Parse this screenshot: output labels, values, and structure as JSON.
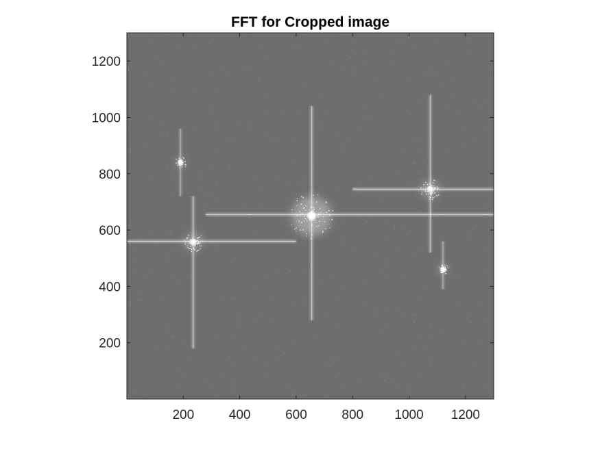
{
  "chart_data": {
    "type": "heatmap",
    "title": "FFT for Cropped image",
    "xlabel": "",
    "ylabel": "",
    "xlim": [
      0,
      1300
    ],
    "ylim": [
      0,
      1300
    ],
    "x_ticks": [
      200,
      400,
      600,
      800,
      1000,
      1200
    ],
    "y_ticks": [
      200,
      400,
      600,
      800,
      1000,
      1200
    ],
    "colormap": "gray",
    "y_direction": "normal",
    "grid": false,
    "background_level": "#6e6e6e",
    "peaks": [
      {
        "x": 655,
        "y": 650,
        "intensity": 1.0,
        "spread": 70
      },
      {
        "x": 235,
        "y": 558,
        "intensity": 0.9,
        "spread": 30
      },
      {
        "x": 1075,
        "y": 745,
        "intensity": 0.9,
        "spread": 30
      },
      {
        "x": 190,
        "y": 840,
        "intensity": 0.6,
        "spread": 18
      },
      {
        "x": 1120,
        "y": 460,
        "intensity": 0.6,
        "spread": 18
      }
    ],
    "streaks": [
      {
        "orientation": "horizontal",
        "at": 655,
        "from": 280,
        "to": 1300,
        "intensity": 0.55
      },
      {
        "orientation": "horizontal",
        "at": 560,
        "from": 0,
        "to": 600,
        "intensity": 0.6
      },
      {
        "orientation": "horizontal",
        "at": 745,
        "from": 800,
        "to": 1300,
        "intensity": 0.55
      },
      {
        "orientation": "vertical",
        "at": 655,
        "from": 280,
        "to": 1040,
        "intensity": 0.5
      },
      {
        "orientation": "vertical",
        "at": 235,
        "from": 180,
        "to": 720,
        "intensity": 0.5
      },
      {
        "orientation": "vertical",
        "at": 1075,
        "from": 520,
        "to": 1080,
        "intensity": 0.45
      },
      {
        "orientation": "vertical",
        "at": 190,
        "from": 720,
        "to": 960,
        "intensity": 0.35
      },
      {
        "orientation": "vertical",
        "at": 1120,
        "from": 390,
        "to": 560,
        "intensity": 0.35
      }
    ]
  }
}
